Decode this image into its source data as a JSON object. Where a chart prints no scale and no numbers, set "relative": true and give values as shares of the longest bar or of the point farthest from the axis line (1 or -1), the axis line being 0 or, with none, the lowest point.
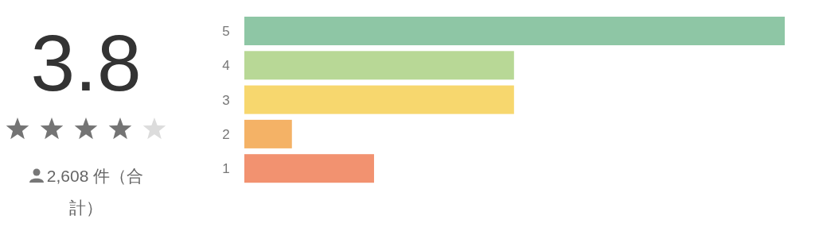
{
  "chart_data": {
    "type": "bar",
    "orientation": "horizontal",
    "relative": true,
    "title": "3.8",
    "annotations": [
      "2,608 件（合計）"
    ],
    "categories": [
      "5",
      "4",
      "3",
      "2",
      "1"
    ],
    "values": [
      1,
      0.499,
      0.499,
      0.088,
      0.24
    ],
    "colors": [
      "#8ec6a5",
      "#b8d896",
      "#f7d76e",
      "#f4b266",
      "#f29270"
    ]
  }
}
